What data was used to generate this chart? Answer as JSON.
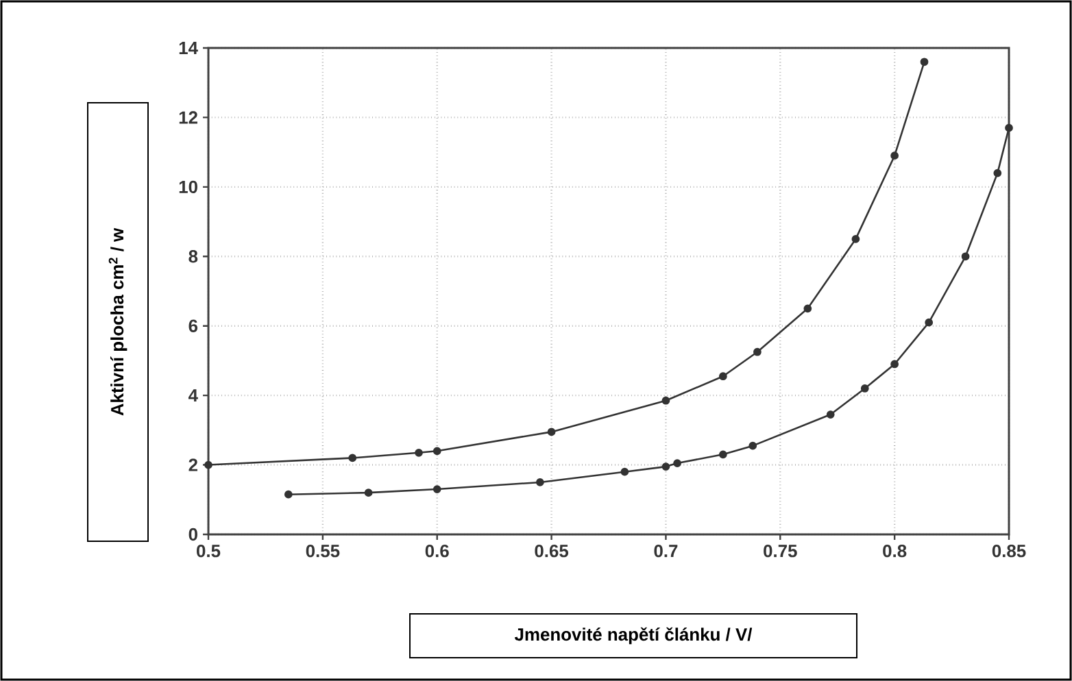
{
  "chart_data": {
    "type": "line",
    "xlabel": "Jmenovité napětí článku / V/",
    "ylabel": "Aktivní plocha  cm$^{2}$ / w",
    "xlim": [
      0.5,
      0.85
    ],
    "xticks": [
      0.5,
      0.55,
      0.6,
      0.65,
      0.7,
      0.75,
      0.8,
      0.85
    ],
    "ylim": [
      0,
      14
    ],
    "yticks": [
      0,
      2,
      4,
      6,
      8,
      10,
      12,
      14
    ],
    "grid": true,
    "marker": "circle",
    "line_style": "solid",
    "series": [
      {
        "color": "#333333",
        "x": [
          0.5,
          0.563,
          0.592,
          0.6,
          0.65,
          0.7,
          0.725,
          0.74,
          0.762,
          0.783,
          0.8,
          0.813
        ],
        "values": [
          2.0,
          2.2,
          2.35,
          2.4,
          2.95,
          3.85,
          4.55,
          5.25,
          6.5,
          8.5,
          10.9,
          13.6
        ]
      },
      {
        "color": "#333333",
        "x": [
          0.535,
          0.57,
          0.6,
          0.645,
          0.682,
          0.7,
          0.705,
          0.725,
          0.738,
          0.772,
          0.787,
          0.8,
          0.815,
          0.831,
          0.845,
          0.85
        ],
        "values": [
          1.15,
          1.2,
          1.3,
          1.5,
          1.8,
          1.95,
          2.05,
          2.3,
          2.55,
          3.45,
          4.2,
          4.9,
          6.1,
          8.0,
          10.4,
          11.7
        ]
      }
    ]
  }
}
